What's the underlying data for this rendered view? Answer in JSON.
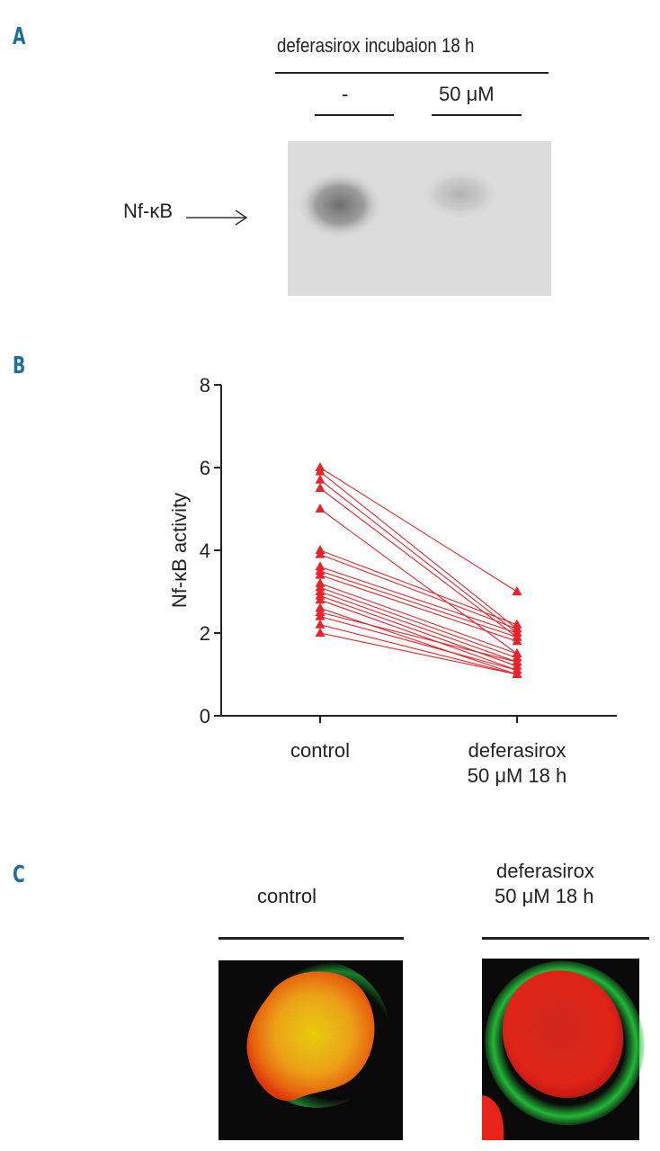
{
  "panels": {
    "a": "A",
    "b": "B",
    "c": "C"
  },
  "panel_a": {
    "header": "deferasirox incubaion 18 h",
    "lane_labels": [
      "-",
      "50 μM"
    ],
    "band_label": "Nf-κB"
  },
  "chart_data": {
    "type": "line",
    "ylabel": "Nf-κB activity",
    "ylim": [
      0,
      8
    ],
    "yticks": [
      0,
      2,
      4,
      6,
      8
    ],
    "categories": [
      "control",
      "deferasirox\n50 μM 18 h"
    ],
    "category_lines": [
      [
        "control"
      ],
      [
        "deferasirox",
        "50 μM 18 h"
      ]
    ],
    "marker": "triangle",
    "color": "#e8232b",
    "series": [
      {
        "values": [
          6.0,
          3.0
        ]
      },
      {
        "values": [
          5.9,
          2.1
        ]
      },
      {
        "values": [
          5.7,
          2.0
        ]
      },
      {
        "values": [
          5.5,
          1.9
        ]
      },
      {
        "values": [
          5.0,
          1.5
        ]
      },
      {
        "values": [
          4.0,
          2.2
        ]
      },
      {
        "values": [
          3.9,
          2.1
        ]
      },
      {
        "values": [
          3.6,
          2.0
        ]
      },
      {
        "values": [
          3.5,
          1.9
        ]
      },
      {
        "values": [
          3.4,
          1.8
        ]
      },
      {
        "values": [
          3.2,
          1.5
        ]
      },
      {
        "values": [
          3.1,
          1.4
        ]
      },
      {
        "values": [
          3.0,
          1.3
        ]
      },
      {
        "values": [
          2.9,
          1.2
        ]
      },
      {
        "values": [
          2.8,
          1.1
        ]
      },
      {
        "values": [
          2.6,
          1.0
        ]
      },
      {
        "values": [
          2.5,
          1.3
        ]
      },
      {
        "values": [
          2.4,
          1.1
        ]
      },
      {
        "values": [
          2.2,
          1.0
        ]
      },
      {
        "values": [
          2.0,
          1.0
        ]
      }
    ]
  },
  "panel_c": {
    "labels": [
      "control",
      "deferasirox",
      "50 μM 18 h"
    ]
  }
}
